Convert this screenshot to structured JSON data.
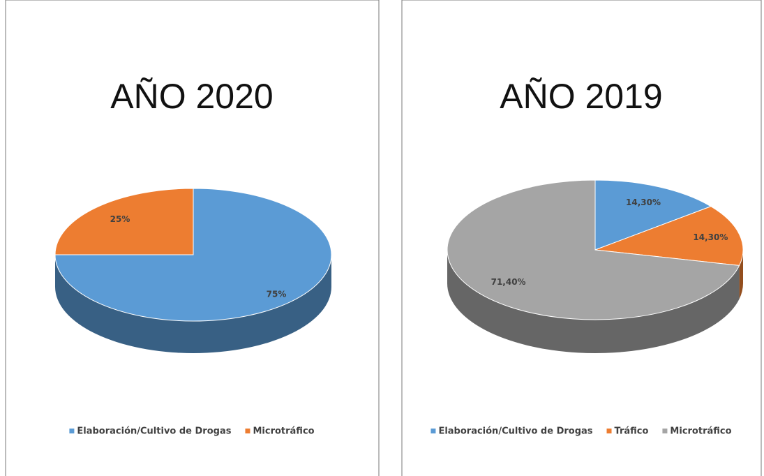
{
  "chart_data": [
    {
      "type": "pie",
      "title": "AÑO 2020",
      "categories": [
        "Elaboración/Cultivo de Drogas",
        "Microtráfico"
      ],
      "values": [
        75,
        25
      ],
      "value_labels": [
        "75%",
        "25%"
      ],
      "colors": [
        "#5b9bd5",
        "#ed7d31"
      ],
      "legend": "bottom"
    },
    {
      "type": "pie",
      "title": "AÑO 2019",
      "categories": [
        "Elaboración/Cultivo de Drogas",
        "Tráfico",
        "Microtráfico"
      ],
      "values": [
        14.3,
        14.3,
        71.4
      ],
      "value_labels": [
        "14,30%",
        "14,30%",
        "71,40%"
      ],
      "colors": [
        "#5b9bd5",
        "#ed7d31",
        "#a5a5a5"
      ],
      "legend": "bottom"
    }
  ]
}
